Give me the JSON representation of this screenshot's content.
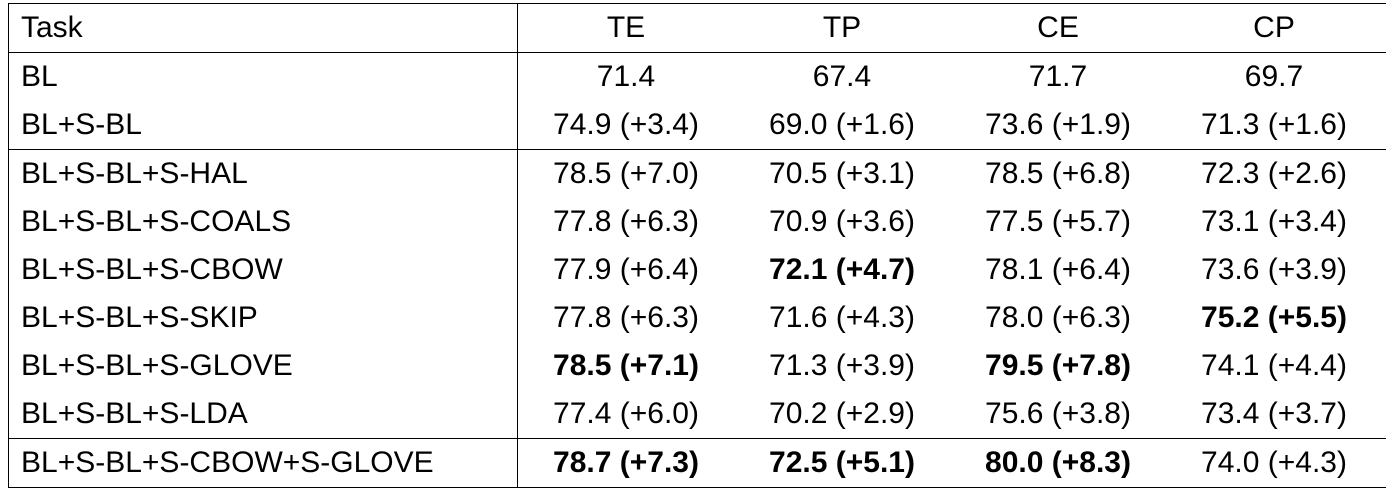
{
  "table": {
    "header": [
      "Task",
      "TE",
      "TP",
      "CE",
      "CP"
    ],
    "groups": [
      {
        "rows": [
          {
            "task": "BL",
            "cells": [
              {
                "text": "71.4"
              },
              {
                "text": "67.4"
              },
              {
                "text": "71.7"
              },
              {
                "text": "69.7"
              }
            ]
          },
          {
            "task": "BL+S-BL",
            "cells": [
              {
                "text": "74.9 (+3.4)"
              },
              {
                "text": "69.0 (+1.6)"
              },
              {
                "text": "73.6 (+1.9)"
              },
              {
                "text": "71.3 (+1.6)"
              }
            ]
          }
        ]
      },
      {
        "rows": [
          {
            "task": "BL+S-BL+S-HAL",
            "cells": [
              {
                "text": "78.5 (+7.0)"
              },
              {
                "text": "70.5 (+3.1)"
              },
              {
                "text": "78.5 (+6.8)"
              },
              {
                "text": "72.3 (+2.6)"
              }
            ]
          },
          {
            "task": "BL+S-BL+S-COALS",
            "cells": [
              {
                "text": "77.8 (+6.3)"
              },
              {
                "text": "70.9 (+3.6)"
              },
              {
                "text": "77.5 (+5.7)"
              },
              {
                "text": "73.1 (+3.4)"
              }
            ]
          },
          {
            "task": "BL+S-BL+S-CBOW",
            "cells": [
              {
                "text": "77.9 (+6.4)"
              },
              {
                "text": "72.1 (+4.7)",
                "bold": true
              },
              {
                "text": "78.1 (+6.4)"
              },
              {
                "text": "73.6 (+3.9)"
              }
            ]
          },
          {
            "task": "BL+S-BL+S-SKIP",
            "cells": [
              {
                "text": "77.8 (+6.3)"
              },
              {
                "text": "71.6 (+4.3)"
              },
              {
                "text": "78.0 (+6.3)"
              },
              {
                "text": "75.2 (+5.5)",
                "bold": true
              }
            ]
          },
          {
            "task": "BL+S-BL+S-GLOVE",
            "cells": [
              {
                "text": "78.5 (+7.1)",
                "bold": true
              },
              {
                "text": "71.3 (+3.9)"
              },
              {
                "text": "79.5 (+7.8)",
                "bold": true
              },
              {
                "text": "74.1 (+4.4)"
              }
            ]
          },
          {
            "task": "BL+S-BL+S-LDA",
            "cells": [
              {
                "text": "77.4 (+6.0)"
              },
              {
                "text": "70.2 (+2.9)"
              },
              {
                "text": "75.6 (+3.8)"
              },
              {
                "text": "73.4 (+3.7)"
              }
            ]
          }
        ]
      },
      {
        "rows": [
          {
            "task": "BL+S-BL+S-CBOW+S-GLOVE",
            "cells": [
              {
                "text": "78.7 (+7.3)",
                "bold": true
              },
              {
                "text": "72.5 (+5.1)",
                "bold": true
              },
              {
                "text": "80.0 (+8.3)",
                "bold": true
              },
              {
                "text": "74.0 (+4.3)"
              }
            ]
          }
        ]
      }
    ]
  }
}
